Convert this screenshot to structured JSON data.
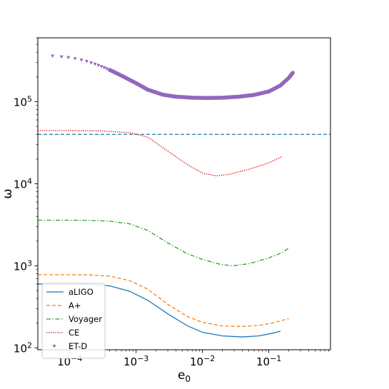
{
  "chart_data": {
    "type": "line",
    "x_scale": "log",
    "y_scale": "log",
    "xlim": [
      3.3e-05,
      0.85
    ],
    "ylim": [
      95,
      600000
    ],
    "xlabel": {
      "base": "e",
      "sub": "0"
    },
    "ylabel": "ω",
    "x_ticks": [
      {
        "value": 0.0001,
        "base": "10",
        "exp": "−4"
      },
      {
        "value": 0.001,
        "base": "10",
        "exp": "−3"
      },
      {
        "value": 0.01,
        "base": "10",
        "exp": "−2"
      },
      {
        "value": 0.1,
        "base": "10",
        "exp": "−1"
      }
    ],
    "y_ticks": [
      {
        "value": 100,
        "base": "10",
        "exp": "2"
      },
      {
        "value": 1000,
        "base": "10",
        "exp": "3"
      },
      {
        "value": 10000,
        "base": "10",
        "exp": "4"
      },
      {
        "value": 100000,
        "base": "10",
        "exp": "5"
      }
    ],
    "hline": {
      "value": 40000,
      "color": "#1f77b4",
      "style": "dashed"
    },
    "legend_position": "lower-left",
    "grid": false,
    "series": [
      {
        "name": "aLIGO",
        "color": "#1f77b4",
        "style": "solid",
        "points": [
          [
            3.3e-05,
            600
          ],
          [
            0.0001,
            600
          ],
          [
            0.0002,
            595
          ],
          [
            0.0004,
            570
          ],
          [
            0.0008,
            490
          ],
          [
            0.0015,
            380
          ],
          [
            0.003,
            260
          ],
          [
            0.006,
            185
          ],
          [
            0.01,
            155
          ],
          [
            0.02,
            140
          ],
          [
            0.04,
            136
          ],
          [
            0.07,
            140
          ],
          [
            0.11,
            150
          ],
          [
            0.15,
            160
          ]
        ]
      },
      {
        "name": "A+",
        "color": "#ff7f0e",
        "style": "dashed",
        "points": [
          [
            3.3e-05,
            780
          ],
          [
            0.0001,
            780
          ],
          [
            0.0002,
            775
          ],
          [
            0.0004,
            750
          ],
          [
            0.0008,
            660
          ],
          [
            0.0015,
            520
          ],
          [
            0.003,
            340
          ],
          [
            0.006,
            240
          ],
          [
            0.01,
            205
          ],
          [
            0.02,
            185
          ],
          [
            0.04,
            182
          ],
          [
            0.07,
            188
          ],
          [
            0.11,
            200
          ],
          [
            0.17,
            220
          ],
          [
            0.2,
            228
          ]
        ]
      },
      {
        "name": "Voyager",
        "color": "#2ca02c",
        "style": "dashdot",
        "points": [
          [
            3.3e-05,
            3600
          ],
          [
            0.0001,
            3600
          ],
          [
            0.0002,
            3580
          ],
          [
            0.0004,
            3500
          ],
          [
            0.0008,
            3250
          ],
          [
            0.0015,
            2700
          ],
          [
            0.003,
            1900
          ],
          [
            0.006,
            1400
          ],
          [
            0.01,
            1200
          ],
          [
            0.018,
            1050
          ],
          [
            0.028,
            1000
          ],
          [
            0.05,
            1060
          ],
          [
            0.1,
            1250
          ],
          [
            0.16,
            1450
          ],
          [
            0.2,
            1650
          ]
        ]
      },
      {
        "name": "CE",
        "color": "#d62728",
        "style": "dotted",
        "points": [
          [
            3.3e-05,
            44500
          ],
          [
            0.0001,
            44500
          ],
          [
            0.0003,
            44000
          ],
          [
            0.0008,
            42000
          ],
          [
            0.0015,
            37000
          ],
          [
            0.003,
            25000
          ],
          [
            0.006,
            17000
          ],
          [
            0.01,
            13500
          ],
          [
            0.016,
            12500
          ],
          [
            0.025,
            13000
          ],
          [
            0.05,
            15000
          ],
          [
            0.1,
            18000
          ],
          [
            0.16,
            21500
          ]
        ]
      },
      {
        "name": "ET-D",
        "color": "#9467bd",
        "style": "markers",
        "marker_points": [
          [
            5.5e-05,
            360000
          ],
          [
            7.5e-05,
            352000
          ],
          [
            9.5e-05,
            345000
          ],
          [
            0.00012,
            335000
          ],
          [
            0.00015,
            322000
          ],
          [
            0.00018,
            310000
          ],
          [
            0.00021,
            297000
          ],
          [
            0.00024,
            287000
          ],
          [
            0.00027,
            277000
          ],
          [
            0.0003,
            268000
          ],
          [
            0.00033,
            260000
          ],
          [
            0.00036,
            252000
          ],
          [
            0.0004,
            244000
          ]
        ],
        "points": [
          [
            0.0004,
            244000
          ],
          [
            0.0006,
            208000
          ],
          [
            0.001,
            168000
          ],
          [
            0.0015,
            140000
          ],
          [
            0.0025,
            122000
          ],
          [
            0.004,
            115000
          ],
          [
            0.007,
            112000
          ],
          [
            0.012,
            111000
          ],
          [
            0.02,
            112000
          ],
          [
            0.035,
            115000
          ],
          [
            0.06,
            121000
          ],
          [
            0.1,
            133000
          ],
          [
            0.15,
            158000
          ],
          [
            0.2,
            195000
          ],
          [
            0.23,
            225000
          ]
        ]
      }
    ]
  }
}
